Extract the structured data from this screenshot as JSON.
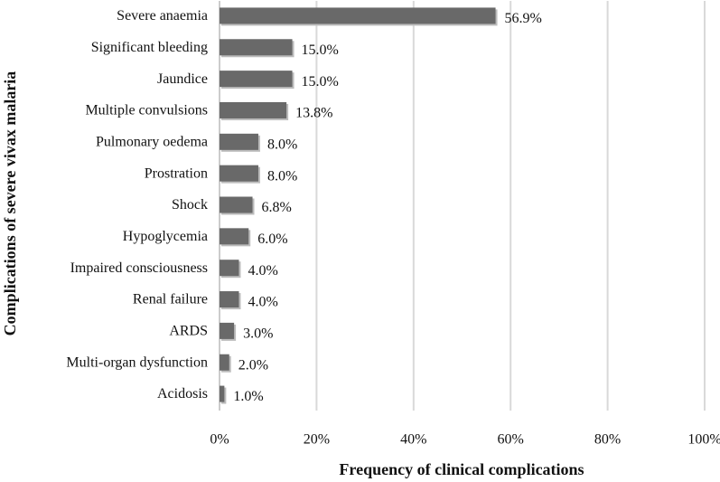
{
  "chart_data": {
    "type": "bar",
    "orientation": "horizontal",
    "x_label": "Frequency of clinical complications",
    "y_label": "Complications of severe vivax malaria",
    "categories": [
      "Severe anaemia",
      "Significant bleeding",
      "Jaundice",
      "Multiple convulsions",
      "Pulmonary oedema",
      "Prostration",
      "Shock",
      "Hypoglycemia",
      "Impaired consciousness",
      "Renal failure",
      "ARDS",
      "Multi-organ dysfunction",
      "Acidosis"
    ],
    "values": [
      56.9,
      15.0,
      15.0,
      13.8,
      8.0,
      8.0,
      6.8,
      6.0,
      4.0,
      4.0,
      3.0,
      2.0,
      1.0
    ],
    "value_labels": [
      "56.9%",
      "15.0%",
      "15.0%",
      "13.8%",
      "8.0%",
      "8.0%",
      "6.8%",
      "6.0%",
      "4.0%",
      "4.0%",
      "3.0%",
      "2.0%",
      "1.0%"
    ],
    "color": "#696969",
    "xlim": [
      0,
      100
    ],
    "xticks": [
      {
        "value": 0,
        "label": "0%"
      },
      {
        "value": 20,
        "label": "20%"
      },
      {
        "value": 40,
        "label": "40%"
      },
      {
        "value": 60,
        "label": "60%"
      },
      {
        "value": 80,
        "label": "80%"
      },
      {
        "value": 100,
        "label": "100%"
      }
    ],
    "grid": true
  }
}
